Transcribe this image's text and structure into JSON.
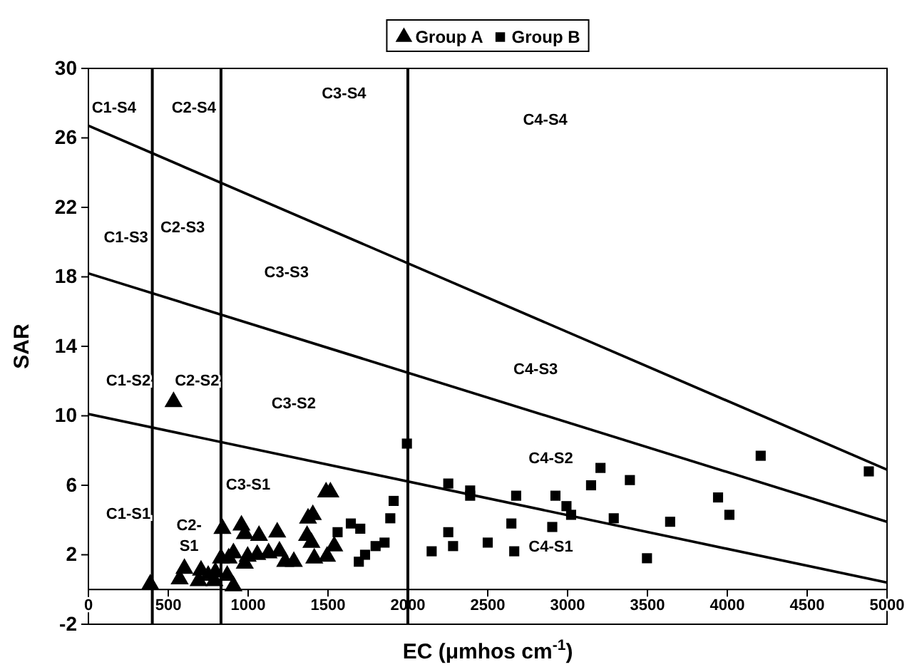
{
  "chart_data": {
    "type": "scatter",
    "xlabel": "EC (μmhos cm$^{-1}$)",
    "ylabel": "SAR",
    "xlim": [
      0,
      5000
    ],
    "ylim": [
      -2,
      30
    ],
    "xticks": [
      0,
      500,
      1000,
      1500,
      2000,
      2500,
      3000,
      3500,
      4000,
      4500,
      5000
    ],
    "yticks": [
      -2,
      2,
      6,
      10,
      14,
      18,
      22,
      26,
      30
    ],
    "grid": false,
    "legend": "top",
    "series": [
      {
        "name": "Group A",
        "color": "#000000",
        "marker": "triangle",
        "x": [
          387,
          533,
          571,
          601,
          690,
          705,
          750,
          789,
          795,
          839,
          830,
          869,
          878,
          908,
          908,
          958,
          979,
          979,
          997,
          1057,
          1068,
          1128,
          1182,
          1196,
          1232,
          1286,
          1369,
          1375,
          1405,
          1396,
          1414,
          1494,
          1488,
          1515,
          1539
        ],
        "values": [
          0.3,
          10.8,
          0.6,
          1.2,
          0.5,
          1.1,
          0.8,
          0.5,
          1.0,
          3.5,
          1.8,
          0.8,
          1.8,
          0.2,
          2.1,
          3.7,
          3.2,
          1.5,
          1.9,
          2.0,
          3.1,
          2.1,
          3.3,
          2.2,
          1.6,
          1.6,
          3.1,
          4.1,
          4.3,
          2.7,
          1.8,
          1.9,
          5.6,
          5.6,
          2.5
        ]
      },
      {
        "name": "Group B",
        "color": "#000000",
        "marker": "square",
        "x": [
          1994,
          1560,
          1643,
          1702,
          1693,
          1732,
          1798,
          1854,
          1890,
          1911,
          2149,
          2253,
          2253,
          2283,
          2390,
          2390,
          2500,
          2648,
          2666,
          2678,
          2904,
          2924,
          2993,
          3022,
          3147,
          3206,
          3289,
          3390,
          3497,
          3642,
          3942,
          4013,
          4209,
          4886
        ],
        "values": [
          8.4,
          3.3,
          3.8,
          3.5,
          1.6,
          2.0,
          2.5,
          2.7,
          4.1,
          5.1,
          2.2,
          6.1,
          3.3,
          2.5,
          5.7,
          5.4,
          2.7,
          3.8,
          2.2,
          5.4,
          3.6,
          5.4,
          4.8,
          4.3,
          6.0,
          7.0,
          4.1,
          6.3,
          1.8,
          3.9,
          5.3,
          4.3,
          7.7,
          6.8
        ]
      },
      {
        "type": "line",
        "color": "#000000",
        "marker": "none",
        "line_style": "solid",
        "x": [
          0,
          5000
        ],
        "values": [
          10.1,
          0.4
        ]
      },
      {
        "type": "line",
        "color": "#000000",
        "marker": "none",
        "line_style": "solid",
        "x": [
          0,
          5000
        ],
        "values": [
          18.2,
          3.9
        ]
      },
      {
        "type": "line",
        "color": "#000000",
        "marker": "none",
        "line_style": "solid",
        "x": [
          0,
          5000
        ],
        "values": [
          26.7,
          6.9
        ]
      }
    ],
    "ref_lines": [
      {
        "axis": "x",
        "value": 400,
        "color": "#000000"
      },
      {
        "axis": "x",
        "value": 830,
        "color": "#000000"
      },
      {
        "axis": "x",
        "value": 2000,
        "color": "#000000"
      }
    ],
    "annotations": [
      "C1-S4",
      "C2-S4",
      "C3-S4",
      "C4-S4",
      "C1-S3",
      "C2-S3",
      "C3-S3",
      "C4-S3",
      "C1-S2",
      "C2-S2",
      "C3-S2",
      "C4-S2",
      "C1-S1",
      "C2-\nS1",
      "C3-S1",
      "C4-S1"
    ]
  }
}
